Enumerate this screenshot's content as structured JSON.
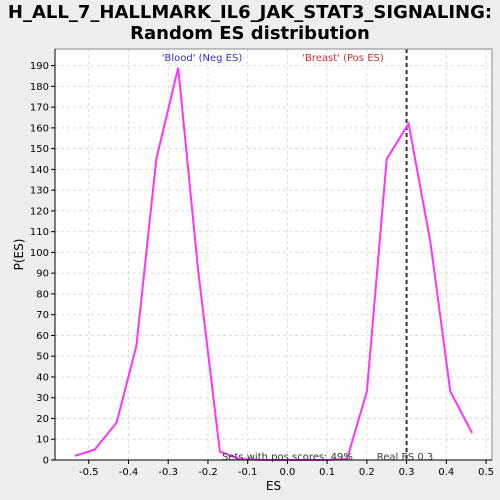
{
  "title_line1": "H_ALL_7_HALLMARK_IL6_JAK_STAT3_SIGNALING:",
  "title_line2": "Random ES distribution",
  "colors": {
    "curve": "#ff33ff",
    "neg_label": "#3333cc",
    "pos_label": "#cc3333",
    "real_es_line": "#333333",
    "grid": "#dddddd",
    "plot_bg": "#ffffff",
    "page_bg": "#eeeeee"
  },
  "chart_data": {
    "type": "line",
    "title": "H_ALL_7_HALLMARK_IL6_JAK_STAT3_SIGNALING: Random ES distribution",
    "xlabel": "ES",
    "ylabel": "P(ES)",
    "xlim": [
      -0.585,
      0.515
    ],
    "ylim": [
      0,
      198
    ],
    "xticks": [
      -0.5,
      -0.4,
      -0.3,
      -0.2,
      -0.1,
      0.0,
      0.1,
      0.2,
      0.3,
      0.4,
      0.5
    ],
    "xtick_labels": [
      "-0.5",
      "-0.4",
      "-0.3",
      "-0.2",
      "-0.1",
      "0.0",
      "0.1",
      "0.2",
      "0.3",
      "0.4",
      "0.5"
    ],
    "yticks": [
      0,
      10,
      20,
      30,
      40,
      50,
      60,
      70,
      80,
      90,
      100,
      110,
      120,
      130,
      140,
      150,
      160,
      170,
      180,
      190
    ],
    "grid": true,
    "series": [
      {
        "x": [
          -0.535,
          -0.485,
          -0.43,
          -0.38,
          -0.33,
          -0.275,
          -0.225,
          -0.17,
          -0.12,
          -0.06,
          0.0,
          0.05,
          0.1,
          0.15,
          0.2,
          0.25,
          0.305,
          0.36,
          0.41,
          0.465
        ],
        "y": [
          2,
          5,
          18,
          55,
          145,
          189,
          92,
          4,
          0.5,
          0,
          0,
          0,
          0,
          0.5,
          33,
          145,
          162,
          105,
          33,
          13
        ]
      }
    ],
    "annotations": {
      "neg_label": "'Blood' (Neg ES)",
      "pos_label": "'Breast' (Pos ES)",
      "pos_scores": "Sets with pos scores: 49%",
      "real_es_label": "Real ES 0.3",
      "real_es": 0.3
    }
  }
}
